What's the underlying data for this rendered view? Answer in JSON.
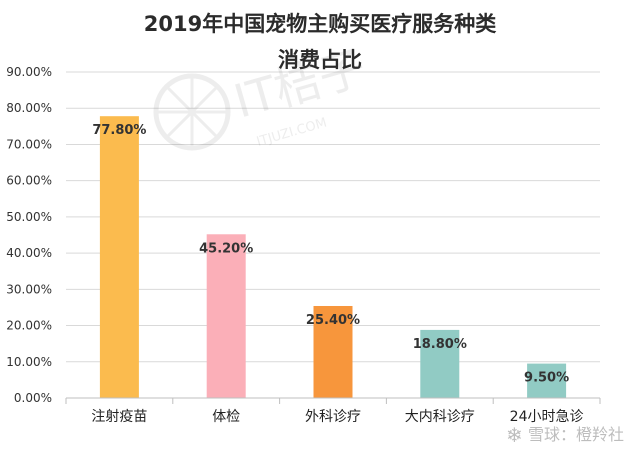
{
  "chart_data": {
    "type": "bar",
    "title_lines": [
      "2019年中国宠物主购买医疗服务种类",
      "消费占比"
    ],
    "categories": [
      "注射疫苗",
      "体检",
      "外科诊疗",
      "大内科诊疗",
      "24小时急诊"
    ],
    "values": [
      77.8,
      45.2,
      25.4,
      18.8,
      9.5
    ],
    "data_labels": [
      "77.80%",
      "45.20%",
      "25.40%",
      "18.80%",
      "9.50%"
    ],
    "bar_colors": [
      "#fbbb4e",
      "#fbafb8",
      "#f7963c",
      "#91cbc4",
      "#91cbc4"
    ],
    "ylim": [
      0,
      90
    ],
    "y_ticks": [
      "0.00%",
      "10.00%",
      "20.00%",
      "30.00%",
      "40.00%",
      "50.00%",
      "60.00%",
      "70.00%",
      "80.00%",
      "90.00%"
    ],
    "y_tick_values": [
      0,
      10,
      20,
      30,
      40,
      50,
      60,
      70,
      80,
      90
    ],
    "grid": true,
    "xlabel": "",
    "ylabel": ""
  },
  "watermarks": {
    "center_brand": "IT桔子",
    "center_url": "ITJUZI.COM",
    "corner": "雪球：橙羚社"
  }
}
